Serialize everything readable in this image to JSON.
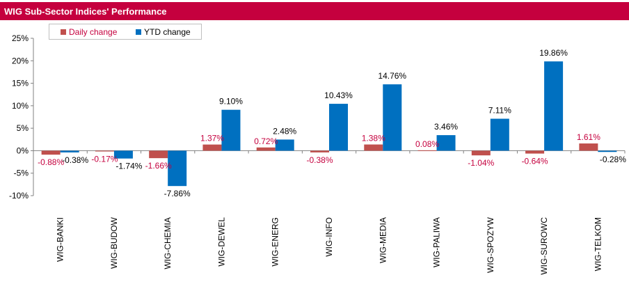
{
  "title": "WIG Sub-Sector Indices' Performance",
  "colors": {
    "title_bg": "#c5003e",
    "daily": "#c0504d",
    "ytd": "#0070c0",
    "daily_label": "#c5003e",
    "ytd_label": "#000000",
    "axis": "#808080"
  },
  "legend": {
    "daily_label": "Daily change",
    "ytd_label": "YTD change"
  },
  "chart_data": {
    "type": "bar",
    "title": "WIG Sub-Sector Indices' Performance",
    "categories": [
      "WIG-BANKI",
      "WIG-BUDOW",
      "WIG-CHEMIA",
      "WIG-DEWEL",
      "WIG-ENERG",
      "WIG-INFO",
      "WIG-MEDIA",
      "WIG-PALIWA",
      "WIG-SPOZYW",
      "WIG-SUROWC",
      "WIG-TELKOM"
    ],
    "series": [
      {
        "name": "Daily change",
        "values": [
          -0.88,
          -0.17,
          -1.66,
          1.37,
          0.72,
          -0.38,
          1.38,
          0.08,
          -1.04,
          -0.64,
          1.61
        ],
        "labels": [
          "-0.88%",
          "-0.17%",
          "-1.66%",
          "1.37%",
          "0.72%",
          "-0.38%",
          "1.38%",
          "0.08%",
          "-1.04%",
          "-0.64%",
          "1.61%"
        ]
      },
      {
        "name": "YTD change",
        "values": [
          -0.38,
          -1.74,
          -7.86,
          9.1,
          2.48,
          10.43,
          14.76,
          3.46,
          7.11,
          19.86,
          -0.28
        ],
        "labels": [
          "-0.38%",
          "-1.74%",
          "-7.86%",
          "9.10%",
          "2.48%",
          "10.43%",
          "14.76%",
          "3.46%",
          "7.11%",
          "19.86%",
          "-0.28%"
        ]
      }
    ],
    "yticks": [
      25,
      20,
      15,
      10,
      5,
      0,
      -5,
      -10
    ],
    "ytick_labels": [
      "25%",
      "20%",
      "15%",
      "10%",
      "5%",
      "0%",
      "-5%",
      "-10%"
    ],
    "ylim": [
      -10,
      25
    ],
    "xlabel": "",
    "ylabel": "",
    "grid": false,
    "legend_position": "top-left"
  }
}
